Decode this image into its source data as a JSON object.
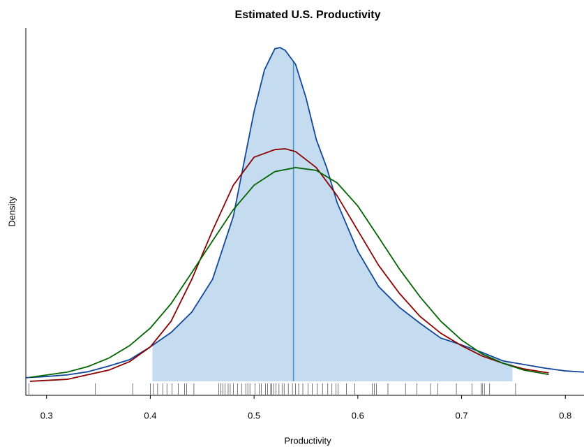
{
  "chart_data": {
    "type": "density",
    "title": "Estimated U.S. Productivity",
    "x_label": "Productivity",
    "y_label": "Density",
    "xlim": [
      0.28,
      0.818
    ],
    "ylim": [
      -0.35,
      8.83
    ],
    "xticks": [
      0.3,
      0.4,
      0.5,
      0.6,
      0.7,
      0.8
    ],
    "fill_color": "#c5dbf0",
    "shade_range": [
      0.402,
      0.749
    ],
    "vline": {
      "x": 0.538,
      "color": "#4a8fc6"
    },
    "rug": [
      0.283,
      0.347,
      0.383,
      0.4,
      0.403,
      0.407,
      0.412,
      0.416,
      0.421,
      0.427,
      0.433,
      0.435,
      0.442,
      0.466,
      0.468,
      0.47,
      0.472,
      0.475,
      0.477,
      0.48,
      0.484,
      0.488,
      0.492,
      0.494,
      0.496,
      0.501,
      0.505,
      0.507,
      0.511,
      0.513,
      0.516,
      0.517,
      0.519,
      0.521,
      0.524,
      0.527,
      0.529,
      0.533,
      0.537,
      0.54,
      0.543,
      0.547,
      0.552,
      0.556,
      0.561,
      0.566,
      0.571,
      0.575,
      0.579,
      0.581,
      0.589,
      0.597,
      0.614,
      0.616,
      0.618,
      0.629,
      0.646,
      0.657,
      0.67,
      0.677,
      0.695,
      0.71,
      0.719,
      0.72,
      0.722,
      0.727,
      0.752
    ],
    "series": [
      {
        "color": "#12479a",
        "x": [
          0.28,
          0.3,
          0.32,
          0.34,
          0.36,
          0.38,
          0.4,
          0.42,
          0.44,
          0.46,
          0.48,
          0.5,
          0.51,
          0.52,
          0.525,
          0.53,
          0.54,
          0.55,
          0.56,
          0.57,
          0.58,
          0.6,
          0.62,
          0.64,
          0.66,
          0.68,
          0.7,
          0.72,
          0.74,
          0.76,
          0.78,
          0.8,
          0.818
        ],
        "values": [
          0.09,
          0.12,
          0.16,
          0.24,
          0.38,
          0.54,
          0.86,
          1.22,
          1.73,
          2.55,
          4.12,
          6.74,
          7.78,
          8.31,
          8.34,
          8.27,
          7.92,
          7.09,
          6.04,
          5.34,
          4.47,
          3.25,
          2.37,
          1.85,
          1.45,
          1.08,
          0.91,
          0.72,
          0.51,
          0.42,
          0.33,
          0.26,
          0.23
        ]
      },
      {
        "color": "#8b0000",
        "x": [
          0.284,
          0.32,
          0.36,
          0.38,
          0.4,
          0.42,
          0.44,
          0.46,
          0.48,
          0.5,
          0.52,
          0.53,
          0.54,
          0.56,
          0.58,
          0.6,
          0.62,
          0.64,
          0.66,
          0.68,
          0.7,
          0.72,
          0.74,
          0.76,
          0.784
        ],
        "values": [
          0.0,
          0.05,
          0.28,
          0.49,
          0.86,
          1.5,
          2.55,
          3.77,
          4.9,
          5.6,
          5.79,
          5.81,
          5.74,
          5.34,
          4.64,
          3.77,
          2.9,
          2.2,
          1.62,
          1.2,
          0.89,
          0.63,
          0.45,
          0.31,
          0.21
        ]
      },
      {
        "color": "#006400",
        "x": [
          0.284,
          0.32,
          0.34,
          0.36,
          0.38,
          0.4,
          0.42,
          0.44,
          0.46,
          0.48,
          0.5,
          0.52,
          0.54,
          0.56,
          0.58,
          0.6,
          0.62,
          0.64,
          0.66,
          0.68,
          0.7,
          0.72,
          0.74,
          0.76,
          0.784
        ],
        "values": [
          0.1,
          0.23,
          0.37,
          0.58,
          0.89,
          1.33,
          1.94,
          2.72,
          3.51,
          4.29,
          4.9,
          5.24,
          5.34,
          5.27,
          4.96,
          4.38,
          3.6,
          2.81,
          2.11,
          1.5,
          1.03,
          0.68,
          0.45,
          0.28,
          0.17
        ]
      }
    ]
  }
}
